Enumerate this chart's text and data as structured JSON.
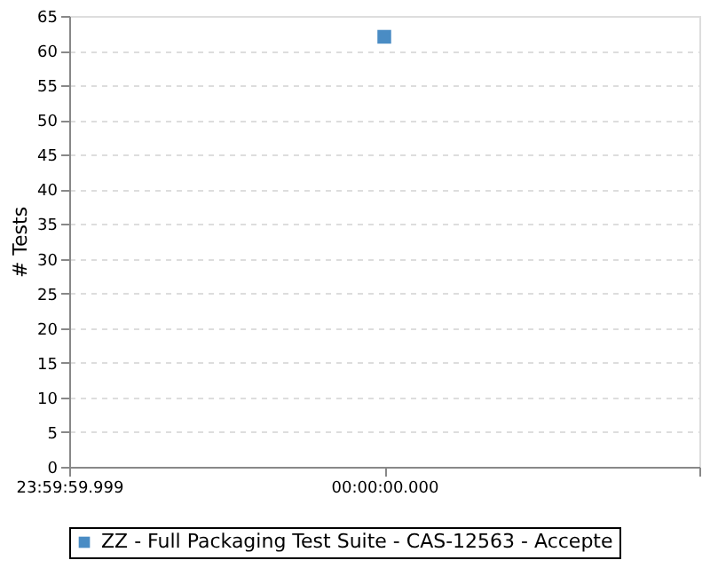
{
  "chart_data": {
    "type": "scatter",
    "ylabel": "# Tests",
    "categories": [
      "23:59:59.999",
      "00:00:00.000",
      null
    ],
    "series": [
      {
        "name": "ZZ - Full Packaging Test Suite - CAS-12563 - Accepte",
        "color": "#4a8cc4",
        "values": [
          null,
          62,
          null
        ]
      }
    ],
    "ylim": [
      0,
      65
    ],
    "yticks": [
      0,
      5,
      10,
      15,
      20,
      25,
      30,
      35,
      40,
      45,
      50,
      55,
      60,
      65
    ],
    "grid": "y",
    "legend": "bottom",
    "marker": "square"
  }
}
